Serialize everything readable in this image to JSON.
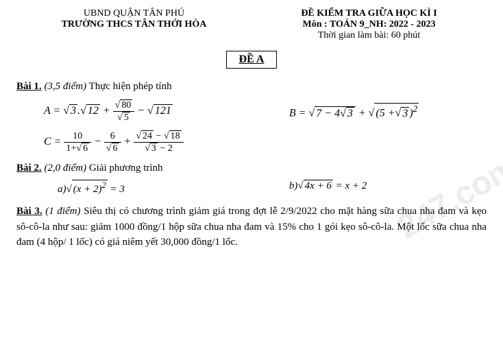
{
  "header": {
    "district": "UBND QUẬN TÂN PHÚ",
    "school": "TRƯỜNG THCS TÂN THỚI HÒA",
    "examTitle": "ĐỀ KIỂM TRA GIỮA HỌC KÌ I",
    "subject": "Môn : TOÁN 9_NH: 2022 - 2023",
    "duration": "Thời gian làm bài: 60 phút"
  },
  "examCode": "ĐỀ A",
  "problem1": {
    "label": "Bài 1.",
    "points": "(3,5 điểm)",
    "instruction": "Thực hiện phép tính",
    "exprA_label": "A =",
    "exprA_part1": "3",
    "exprA_part2": "12",
    "exprA_frac_num": "80",
    "exprA_frac_den": "5",
    "exprA_part3": "121",
    "exprB_label": "B =",
    "exprB_inner1": "7 − 4",
    "exprB_inner1b": "3",
    "exprB_inner2": "5 +",
    "exprB_inner2b": "3",
    "exprC_label": "C =",
    "exprC_frac1_num": "10",
    "exprC_frac1_den_a": "1+",
    "exprC_frac1_den_b": "6",
    "exprC_frac2_num": "6",
    "exprC_frac2_den": "6",
    "exprC_frac3_num_a": "24",
    "exprC_frac3_num_b": "18",
    "exprC_frac3_den_a": "3",
    "exprC_frac3_den_b": "− 2"
  },
  "problem2": {
    "label": "Bài 2.",
    "points": "(2,0 điểm)",
    "instruction": "Giải phương trình",
    "eqA_label": "a)",
    "eqA_inner": "(x + 2)",
    "eqA_rhs": "= 3",
    "eqB_label": "b)",
    "eqB_inner": "4x + 6",
    "eqB_rhs": "= x + 2"
  },
  "problem3": {
    "label": "Bài 3.",
    "points": "(1 điểm)",
    "text": "Siêu thị có chương trình giảm giá trong đợt lễ 2/9/2022 cho mặt hàng sữa chua nha đam và kẹo sô-cô-la như sau: giảm 1000 đồng/1 hộp sữa chua nha đam và 15% cho 1 gói kẹo sô-cô-la. Một lốc sữa chua nha đam (4 hộp/ 1 lốc) có giá niêm yết 30,000 đồng/1 lốc."
  },
  "watermark": "247.com"
}
